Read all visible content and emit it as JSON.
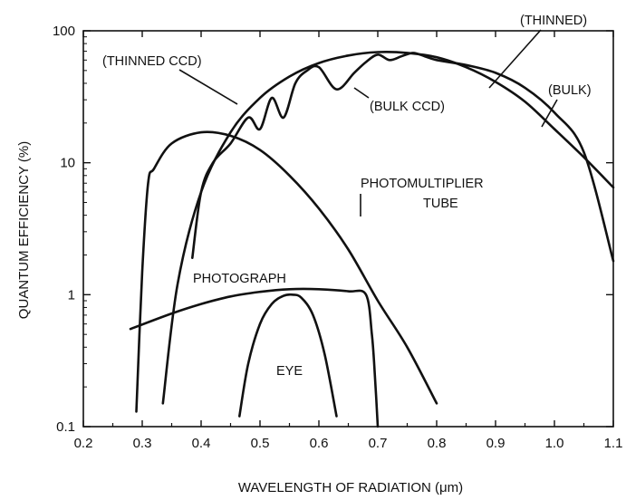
{
  "chart_data": {
    "type": "line",
    "xlabel": "WAVELENGTH OF RADIATION (μm)",
    "ylabel": "QUANTUM EFFICIENCY (%)",
    "xlim": [
      0.2,
      1.1
    ],
    "ylim": [
      0.1,
      100
    ],
    "yscale": "log",
    "grid": false,
    "x_ticks": [
      "0.2",
      "0.3",
      "0.4",
      "0.5",
      "0.6",
      "0.7",
      "0.8",
      "0.9",
      "1.0",
      "1.1"
    ],
    "y_ticks": [
      "0.1",
      "1",
      "10",
      "100"
    ],
    "series": [
      {
        "name": "(THINNED CCD)",
        "x": [
          0.335,
          0.36,
          0.4,
          0.45,
          0.5,
          0.55,
          0.6,
          0.65,
          0.7,
          0.75,
          0.8,
          0.85,
          0.9,
          0.95,
          1.0,
          1.05,
          1.1
        ],
        "y": [
          0.15,
          1.2,
          6,
          17,
          31,
          45,
          57,
          65,
          69,
          68,
          63,
          53,
          41,
          29,
          18,
          11,
          6.5
        ]
      },
      {
        "name": "(BULK CCD)",
        "x": [
          0.385,
          0.4,
          0.42,
          0.45,
          0.48,
          0.5,
          0.52,
          0.54,
          0.56,
          0.58,
          0.6,
          0.63,
          0.66,
          0.68,
          0.7,
          0.72,
          0.74,
          0.76,
          0.78,
          0.8,
          0.85,
          0.9,
          0.95,
          1.0,
          1.05,
          1.1
        ],
        "y": [
          1.9,
          6,
          10,
          14,
          22,
          18,
          31,
          22,
          40,
          50,
          53,
          36,
          48,
          58,
          66,
          60,
          64,
          68,
          64,
          60,
          55,
          48,
          37,
          24,
          12,
          1.8
        ]
      },
      {
        "name": "PHOTOMULTIPLIER TUBE",
        "x": [
          0.29,
          0.3,
          0.31,
          0.32,
          0.35,
          0.4,
          0.45,
          0.5,
          0.55,
          0.6,
          0.65,
          0.7,
          0.75,
          0.8
        ],
        "y": [
          0.13,
          1.5,
          7,
          9,
          14,
          17,
          16,
          12.5,
          8,
          4.5,
          2.2,
          0.9,
          0.4,
          0.15
        ]
      },
      {
        "name": "PHOTOGRAPH",
        "x": [
          0.28,
          0.35,
          0.4,
          0.45,
          0.5,
          0.55,
          0.6,
          0.65,
          0.68,
          0.69,
          0.695,
          0.7
        ],
        "y": [
          0.55,
          0.72,
          0.85,
          0.97,
          1.05,
          1.1,
          1.1,
          1.06,
          1.0,
          0.5,
          0.25,
          0.1
        ]
      },
      {
        "name": "EYE",
        "x": [
          0.465,
          0.48,
          0.5,
          0.52,
          0.54,
          0.555,
          0.57,
          0.59,
          0.61,
          0.63
        ],
        "y": [
          0.12,
          0.3,
          0.6,
          0.85,
          0.98,
          1.0,
          0.95,
          0.7,
          0.35,
          0.12
        ]
      }
    ],
    "annotations": [
      "(THINNED CCD)",
      "(BULK CCD)",
      "(THINNED)",
      "(BULK)",
      "PHOTOMULTIPLIER",
      "TUBE",
      "PHOTOGRAPH",
      "EYE"
    ]
  }
}
